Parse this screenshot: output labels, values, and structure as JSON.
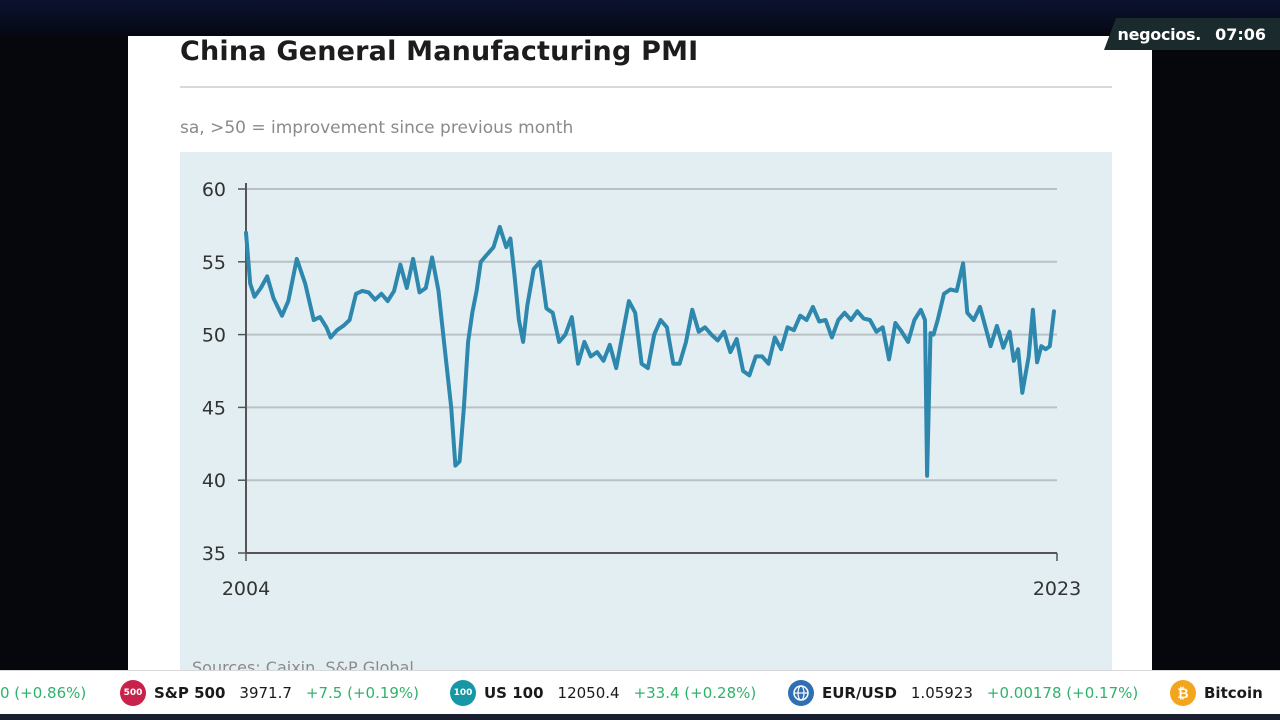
{
  "broadcast": {
    "channel": "negocios.",
    "time": "07:06",
    "colors": {
      "badge_bg": "#1b2a2c",
      "up": "#2fb36b"
    }
  },
  "ticker": [
    {
      "name": "",
      "value": "",
      "change": "0 (+0.86%)",
      "icon": "",
      "icon_color": ""
    },
    {
      "name": "S&P 500",
      "value": "3971.7",
      "change": "+7.5 (+0.19%)",
      "icon": "500",
      "icon_color": "#c8224a"
    },
    {
      "name": "US 100",
      "value": "12050.4",
      "change": "+33.4 (+0.28%)",
      "icon": "100",
      "icon_color": "#1597a6"
    },
    {
      "name": "EUR/USD",
      "value": "1.05923",
      "change": "+0.00178 (+0.17%)",
      "icon": "globe-icon",
      "icon_color": "#2f6fb3"
    },
    {
      "name": "Bitcoin",
      "value": "",
      "change": "",
      "icon": "bitcoin-icon",
      "icon_color": "#f2a51d"
    }
  ],
  "chart_data": {
    "type": "line",
    "title": "China General Manufacturing PMI",
    "subtitle": "sa, >50 = improvement since previous month",
    "source": "Sources: Caixin, S&P Global",
    "xlabel": "",
    "ylabel": "",
    "x_tick_labels": [
      "2004",
      "2023"
    ],
    "xlim": [
      2004.0,
      2023.17
    ],
    "ylim": [
      35,
      60
    ],
    "y_ticks": [
      60,
      55,
      50,
      45,
      40,
      35
    ],
    "grid": true,
    "line_color": "#2e87ad",
    "panel_color": "#e3eef3",
    "series": [
      {
        "name": "China General Manufacturing PMI",
        "x": [
          2004.0,
          2004.1,
          2004.2,
          2004.35,
          2004.5,
          2004.65,
          2004.85,
          2005.0,
          2005.2,
          2005.4,
          2005.6,
          2005.75,
          2005.9,
          2006.0,
          2006.15,
          2006.3,
          2006.45,
          2006.6,
          2006.75,
          2006.9,
          2007.05,
          2007.2,
          2007.35,
          2007.5,
          2007.65,
          2007.8,
          2007.95,
          2008.1,
          2008.25,
          2008.4,
          2008.55,
          2008.7,
          2008.85,
          2008.95,
          2009.05,
          2009.15,
          2009.25,
          2009.35,
          2009.45,
          2009.55,
          2009.7,
          2009.85,
          2010.0,
          2010.15,
          2010.25,
          2010.35,
          2010.45,
          2010.55,
          2010.65,
          2010.8,
          2010.95,
          2011.1,
          2011.25,
          2011.4,
          2011.55,
          2011.7,
          2011.85,
          2012.0,
          2012.15,
          2012.3,
          2012.45,
          2012.6,
          2012.75,
          2012.9,
          2013.05,
          2013.2,
          2013.35,
          2013.5,
          2013.65,
          2013.8,
          2013.95,
          2014.1,
          2014.25,
          2014.4,
          2014.55,
          2014.7,
          2014.85,
          2015.0,
          2015.15,
          2015.3,
          2015.45,
          2015.6,
          2015.75,
          2015.9,
          2016.05,
          2016.2,
          2016.35,
          2016.5,
          2016.65,
          2016.8,
          2016.95,
          2017.1,
          2017.25,
          2017.4,
          2017.55,
          2017.7,
          2017.85,
          2018.0,
          2018.15,
          2018.3,
          2018.45,
          2018.6,
          2018.75,
          2018.9,
          2019.05,
          2019.2,
          2019.35,
          2019.5,
          2019.65,
          2019.8,
          2019.95,
          2020.05,
          2020.1,
          2020.18,
          2020.25,
          2020.35,
          2020.5,
          2020.65,
          2020.8,
          2020.95,
          2021.05,
          2021.2,
          2021.35,
          2021.5,
          2021.6,
          2021.75,
          2021.9,
          2022.05,
          2022.15,
          2022.25,
          2022.35,
          2022.5,
          2022.6,
          2022.7,
          2022.8,
          2022.9,
          2023.0,
          2023.1
        ],
        "y": [
          57.0,
          53.5,
          52.6,
          53.2,
          54.0,
          52.5,
          51.3,
          52.3,
          55.2,
          53.5,
          51.0,
          51.2,
          50.5,
          49.8,
          50.3,
          50.6,
          51.0,
          52.8,
          53.0,
          52.9,
          52.4,
          52.8,
          52.3,
          53.0,
          54.8,
          53.2,
          55.2,
          52.9,
          53.2,
          55.3,
          53.0,
          49.0,
          45.0,
          41.0,
          41.3,
          45.0,
          49.5,
          51.5,
          53.0,
          55.0,
          55.5,
          56.0,
          57.4,
          56.0,
          56.6,
          54.0,
          51.0,
          49.5,
          52.0,
          54.5,
          55.0,
          51.8,
          51.5,
          49.5,
          50.0,
          51.2,
          48.0,
          49.5,
          48.5,
          48.8,
          48.2,
          49.3,
          47.7,
          50.0,
          52.3,
          51.5,
          48.0,
          47.7,
          50.0,
          51.0,
          50.5,
          48.0,
          48.0,
          49.5,
          51.7,
          50.2,
          50.5,
          50.0,
          49.6,
          50.2,
          48.8,
          49.7,
          47.5,
          47.2,
          48.5,
          48.5,
          48.0,
          49.8,
          49.0,
          50.5,
          50.3,
          51.3,
          51.0,
          51.9,
          50.9,
          51.0,
          49.8,
          51.0,
          51.5,
          51.0,
          51.6,
          51.1,
          51.0,
          50.2,
          50.5,
          48.3,
          50.8,
          50.2,
          49.5,
          51.0,
          51.7,
          51.0,
          40.3,
          50.1,
          50.0,
          51.0,
          52.8,
          53.1,
          53.0,
          54.9,
          51.5,
          51.0,
          51.9,
          50.3,
          49.2,
          50.6,
          49.1,
          50.2,
          48.2,
          49.0,
          46.0,
          48.5,
          51.7,
          48.1,
          49.2,
          49.0,
          49.2,
          51.6
        ]
      }
    ]
  }
}
